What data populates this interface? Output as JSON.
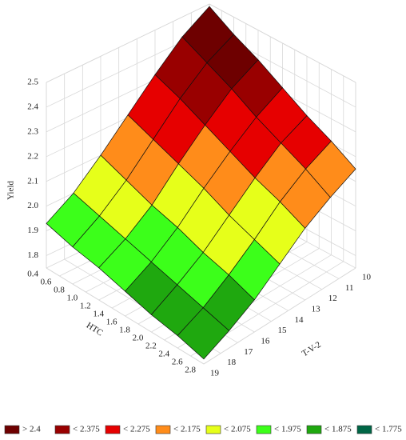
{
  "chart_data": {
    "type": "surface",
    "xlabel": "HTC",
    "ylabel": "T-V-2",
    "zlabel": "Yield",
    "x": [
      0.4,
      0.8,
      1.2,
      1.6,
      2.0,
      2.4,
      2.8
    ],
    "y": [
      10,
      11.5,
      13,
      14.5,
      16,
      17.5,
      19
    ],
    "z": [
      [
        2.49,
        2.42,
        2.32,
        2.21,
        2.1,
        2.0,
        1.93
      ],
      [
        2.43,
        2.37,
        2.28,
        2.17,
        2.06,
        1.97,
        1.9
      ],
      [
        2.38,
        2.32,
        2.23,
        2.13,
        2.02,
        1.94,
        1.88
      ],
      [
        2.32,
        2.26,
        2.18,
        2.09,
        1.99,
        1.91,
        1.85
      ],
      [
        2.26,
        2.21,
        2.13,
        2.04,
        1.95,
        1.88,
        1.82
      ],
      [
        2.21,
        2.16,
        2.09,
        2.0,
        1.92,
        1.85,
        1.8
      ],
      [
        2.15,
        2.1,
        2.04,
        1.96,
        1.88,
        1.82,
        1.77
      ]
    ],
    "xlim": [
      0.4,
      2.8
    ],
    "ylim": [
      10,
      19
    ],
    "zlim": [
      1.75,
      2.5
    ],
    "xticks": [
      0.4,
      0.6,
      0.8,
      {
        "value": 1.0,
        "label": "1.0"
      },
      1.2,
      1.4,
      1.6,
      1.8,
      {
        "value": 2.0,
        "label": "2.0"
      },
      2.2,
      2.4,
      2.6,
      2.8
    ],
    "yticks": [
      10,
      11,
      12,
      13,
      14,
      15,
      16,
      17,
      18,
      19
    ],
    "zticks": [
      1.8,
      1.9,
      {
        "value": 2.0,
        "label": "2.0"
      },
      2.1,
      2.2,
      2.3,
      2.4,
      2.5
    ],
    "legend": [
      {
        "value": 2.4,
        "label": "> 2.4",
        "color": "#6e0000"
      },
      {
        "value": 2.375,
        "label": "< 2.375",
        "color": "#990000"
      },
      {
        "value": 2.275,
        "label": "< 2.275",
        "color": "#e60000"
      },
      {
        "value": 2.175,
        "label": "< 2.175",
        "color": "#ff8c1a"
      },
      {
        "value": 2.075,
        "label": "< 2.075",
        "color": "#e6ff1a"
      },
      {
        "value": 1.975,
        "label": "< 1.975",
        "color": "#3cff1a"
      },
      {
        "value": 1.875,
        "label": "< 1.875",
        "color": "#1fa80f"
      },
      {
        "value": 1.775,
        "label": "< 1.775",
        "color": "#006646"
      }
    ]
  }
}
